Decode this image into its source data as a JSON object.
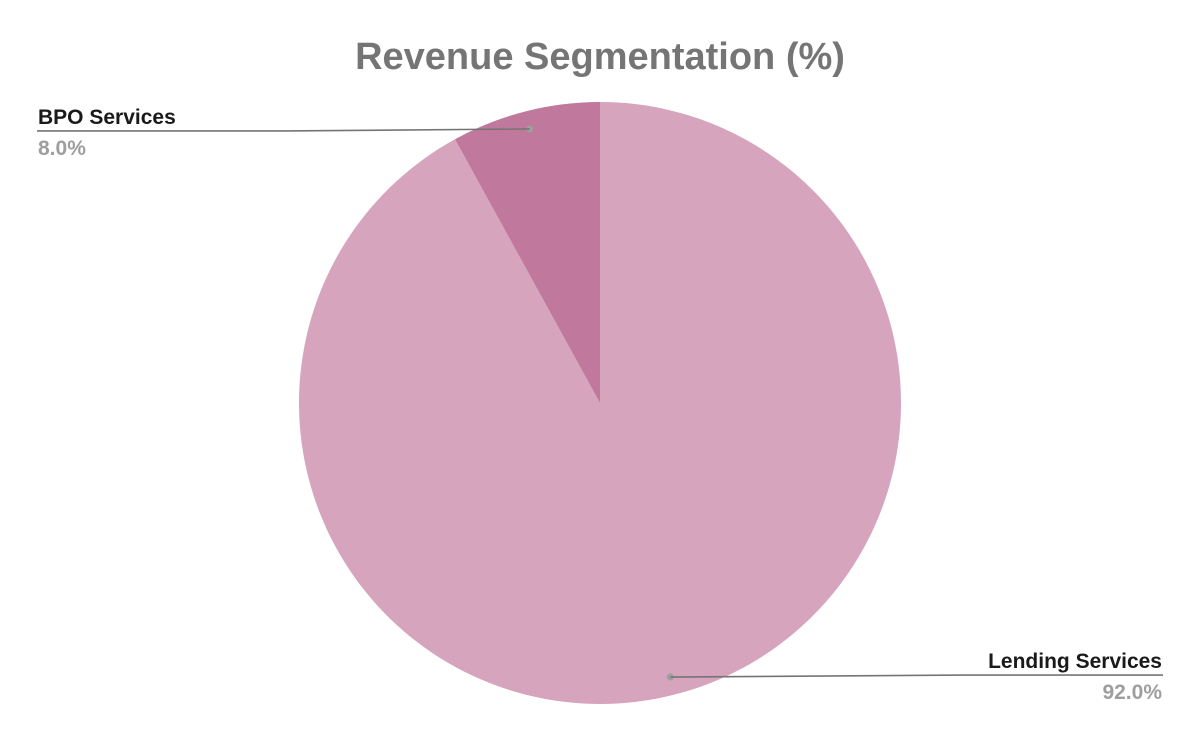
{
  "chart_data": {
    "type": "pie",
    "title": "Revenue Segmentation (%)",
    "start_angle_deg": 0,
    "direction": "clockwise",
    "slices": [
      {
        "label": "Lending Services",
        "value": 92.0,
        "value_label": "92.0%",
        "color": "#d6a4bd",
        "label_side": "right"
      },
      {
        "label": "BPO Services",
        "value": 8.0,
        "value_label": "8.0%",
        "color": "#c0789d",
        "label_side": "left"
      }
    ],
    "leader_line_color": "#757575"
  }
}
